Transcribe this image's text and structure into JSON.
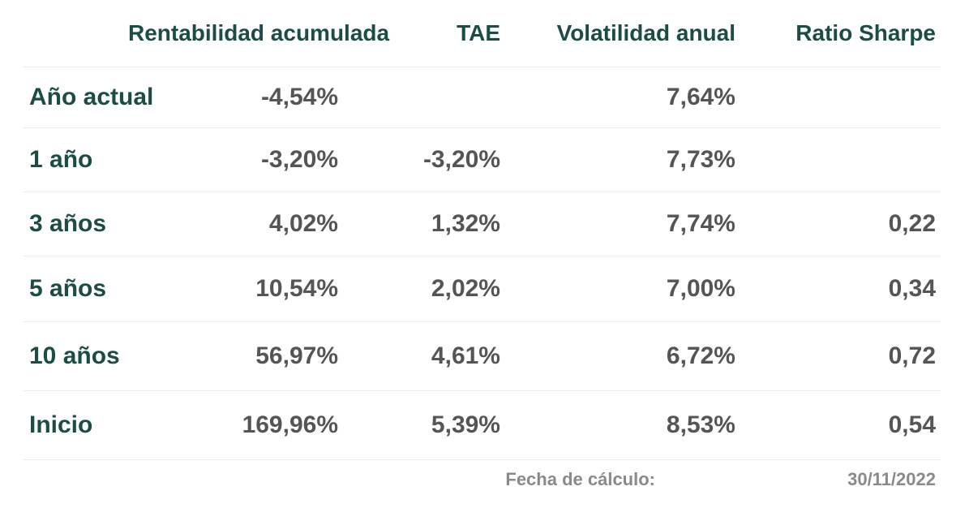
{
  "table": {
    "headers": [
      "",
      "Rentabilidad acumulada",
      "TAE",
      "Volatilidad anual",
      "Ratio Sharpe"
    ],
    "rows": [
      {
        "label": "Año actual",
        "rentabilidad": "-4,54%",
        "tae": "",
        "volatilidad": "7,64%",
        "sharpe": ""
      },
      {
        "label": "1 año",
        "rentabilidad": "-3,20%",
        "tae": "-3,20%",
        "volatilidad": "7,73%",
        "sharpe": ""
      },
      {
        "label": "3 años",
        "rentabilidad": "4,02%",
        "tae": "1,32%",
        "volatilidad": "7,74%",
        "sharpe": "0,22"
      },
      {
        "label": "5 años",
        "rentabilidad": "10,54%",
        "tae": "2,02%",
        "volatilidad": "7,00%",
        "sharpe": "0,34"
      },
      {
        "label": "10 años",
        "rentabilidad": "56,97%",
        "tae": "4,61%",
        "volatilidad": "6,72%",
        "sharpe": "0,72"
      },
      {
        "label": "Inicio",
        "rentabilidad": "169,96%",
        "tae": "5,39%",
        "volatilidad": "8,53%",
        "sharpe": "0,54"
      }
    ]
  },
  "footer": {
    "label": "Fecha de cálculo:",
    "date": "30/11/2022"
  },
  "colors": {
    "header_text": "#1b4d45",
    "row_label_text": "#1b4d45",
    "value_text": "#555555",
    "footer_text": "#8a8a8a",
    "divider": "#ececec"
  }
}
